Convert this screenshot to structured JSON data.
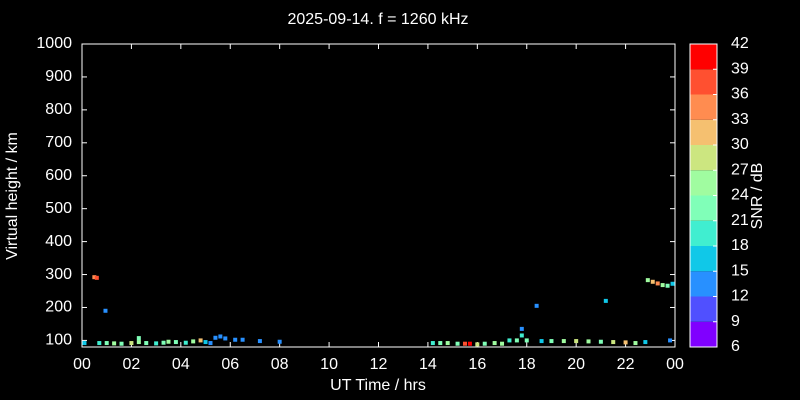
{
  "chart_data": {
    "type": "scatter",
    "title": "2025-09-14. f = 1260 kHz",
    "x_label": "UT Time / hrs",
    "y_label": "Virtual height / km",
    "colorbar_label": "SNR / dB",
    "xlim": [
      0,
      24
    ],
    "xticks": [
      {
        "value": 0,
        "label": "00"
      },
      {
        "value": 2,
        "label": "02"
      },
      {
        "value": 4,
        "label": "04"
      },
      {
        "value": 6,
        "label": "06"
      },
      {
        "value": 8,
        "label": "08"
      },
      10,
      12,
      14,
      16,
      18,
      20,
      22,
      {
        "value": 24,
        "label": "00"
      }
    ],
    "ylim": [
      80,
      1000
    ],
    "yticks": [
      100,
      200,
      300,
      400,
      500,
      600,
      700,
      800,
      900,
      1000
    ],
    "clim": [
      6,
      42
    ],
    "cticks": [
      6,
      9,
      12,
      15,
      18,
      21,
      24,
      27,
      30,
      33,
      36,
      39,
      42
    ],
    "colormap": [
      "#8000ff",
      "#5050ff",
      "#2890ff",
      "#10c8e8",
      "#40eed0",
      "#80ffb8",
      "#a0fca0",
      "#cce680",
      "#f5c070",
      "#ff8c50",
      "#ff5030",
      "#ff0000"
    ],
    "series": [
      {
        "x": [
          0.1,
          0.5,
          0.6,
          0.95,
          0.7,
          1.0,
          1.3,
          1.6,
          2.0,
          2.3,
          2.3,
          2.6,
          3.0,
          3.3,
          3.5,
          3.8,
          4.2,
          4.5,
          4.8,
          5.0,
          5.2,
          5.4,
          5.6,
          5.8,
          6.2,
          6.5,
          7.2,
          8.0,
          14.2,
          14.5,
          14.8,
          15.2,
          15.5,
          15.7,
          16.0,
          16.3,
          16.7,
          17.0,
          17.3,
          17.6,
          17.8,
          17.8,
          18.0,
          18.4,
          18.6,
          19.0,
          19.5,
          20.0,
          20.5,
          21.0,
          21.2,
          21.5,
          22.0,
          22.4,
          22.8,
          22.9,
          23.1,
          23.3,
          23.5,
          23.7,
          23.9,
          23.8
        ],
        "y": [
          92,
          292,
          290,
          190,
          92,
          92,
          91,
          90,
          92,
          95,
          107,
          92,
          91,
          93,
          96,
          95,
          93,
          97,
          100,
          95,
          92,
          108,
          112,
          106,
          102,
          102,
          98,
          96,
          92,
          92,
          92,
          90,
          90,
          90,
          88,
          90,
          92,
          90,
          100,
          100,
          135,
          115,
          100,
          205,
          98,
          98,
          98,
          98,
          97,
          96,
          220,
          95,
          94,
          92,
          95,
          283,
          278,
          273,
          268,
          266,
          272,
          100
        ],
        "snr": [
          15,
          33,
          36,
          12,
          18,
          21,
          24,
          21,
          27,
          24,
          21,
          21,
          18,
          21,
          24,
          21,
          18,
          24,
          30,
          15,
          12,
          12,
          12,
          12,
          12,
          12,
          12,
          12,
          18,
          21,
          24,
          21,
          36,
          39,
          27,
          21,
          24,
          24,
          18,
          21,
          12,
          18,
          21,
          12,
          15,
          21,
          24,
          27,
          24,
          21,
          15,
          27,
          30,
          24,
          15,
          24,
          30,
          33,
          24,
          21,
          15,
          12
        ]
      }
    ]
  }
}
